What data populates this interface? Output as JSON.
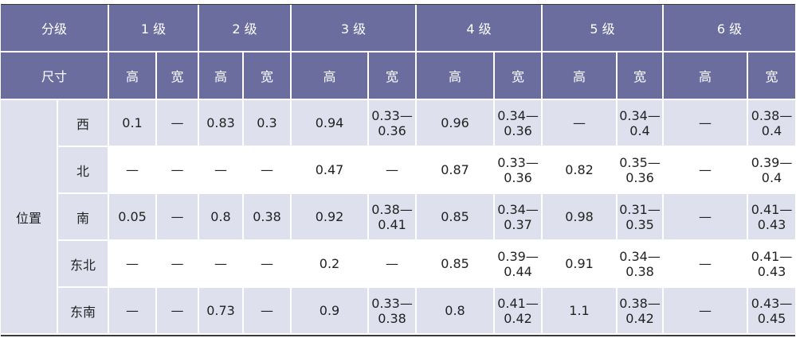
{
  "header": {
    "grade_label": "分级",
    "grades": [
      "1 级",
      "2 级",
      "3 级",
      "4 级",
      "5 级",
      "6 级"
    ],
    "size_label": "尺寸",
    "high_label": "高",
    "wide_label": "宽"
  },
  "group_label": "位置",
  "rows": [
    {
      "dir": "西",
      "values": [
        "0.1",
        "—",
        "0.83",
        "0.3",
        "0.94",
        "0.33—0.36",
        "0.96",
        "0.34—0.36",
        "—",
        "0.34—0.4",
        "—",
        "0.38—0.4"
      ]
    },
    {
      "dir": "北",
      "values": [
        "—",
        "—",
        "—",
        "—",
        "0.47",
        "—",
        "0.87",
        "0.33—0.36",
        "0.82",
        "0.35—0.36",
        "—",
        "0.39—0.4"
      ]
    },
    {
      "dir": "南",
      "values": [
        "0.05",
        "—",
        "0.8",
        "0.38",
        "0.92",
        "0.38—0.41",
        "0.85",
        "0.34—0.37",
        "0.98",
        "0.31—0.35",
        "—",
        "0.41—0.43"
      ]
    },
    {
      "dir": "东北",
      "values": [
        "—",
        "—",
        "—",
        "—",
        "0.2",
        "—",
        "0.85",
        "0.39—0.44",
        "0.91",
        "0.34—0.38",
        "—",
        "0.41—0.43"
      ]
    },
    {
      "dir": "东南",
      "values": [
        "—",
        "—",
        "0.73",
        "—",
        "0.9",
        "0.33—0.38",
        "0.8",
        "0.41—0.42",
        "1.1",
        "0.38—0.42",
        "—",
        "0.43—0.45"
      ]
    }
  ]
}
